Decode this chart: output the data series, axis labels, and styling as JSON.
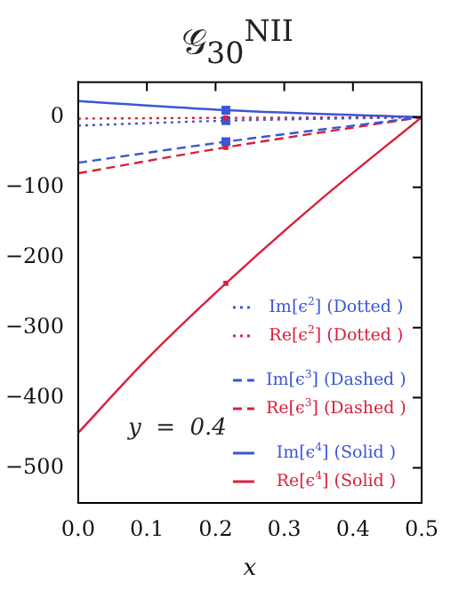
{
  "chart_data": {
    "type": "line",
    "title": "𝒢$_{30}$$^{NII}$",
    "xlabel": "x",
    "xlim": [
      0,
      0.5
    ],
    "ylim": [
      -550,
      50
    ],
    "xticks": [
      {
        "value": 0,
        "label": "0.0"
      },
      {
        "value": 0.1,
        "label": "0.1"
      },
      {
        "value": 0.2,
        "label": "0.2"
      },
      {
        "value": 0.3,
        "label": "0.3"
      },
      {
        "value": 0.4,
        "label": "0.4"
      },
      {
        "value": 0.5,
        "label": "0.5"
      }
    ],
    "yticks": [
      -500,
      -400,
      -300,
      -200,
      -100,
      0
    ],
    "grid": false,
    "legend": "bottom right",
    "annotations": [
      "y  =  0.4"
    ],
    "series": [
      {
        "name": "Im[ϵ$^{2}$] (Dotted )",
        "color": "#3a55d8",
        "line_style": "dotted",
        "x": [
          0,
          0.215,
          0.5
        ],
        "values": [
          -12,
          -5,
          0
        ]
      },
      {
        "name": "Re[ϵ$^{2}$] (Dotted )",
        "color": "#d8203c",
        "line_style": "dotted",
        "x": [
          0,
          0.215,
          0.5
        ],
        "values": [
          -2,
          -1,
          0
        ]
      },
      {
        "name": "Im[ϵ$^{3}$] (Dashed )",
        "color": "#3a55d8",
        "line_style": "dashed",
        "x": [
          0,
          0.215,
          0.5
        ],
        "values": [
          -65,
          -35,
          0
        ]
      },
      {
        "name": "Re[ϵ$^{3}$] (Dashed )",
        "color": "#d8203c",
        "line_style": "dashed",
        "x": [
          0,
          0.215,
          0.5
        ],
        "values": [
          -80,
          -43,
          0
        ]
      },
      {
        "name": "Im[ϵ$^{4}$] (Solid )",
        "color": "#3a55d8",
        "line_style": "solid",
        "x": [
          0,
          0.215,
          0.5
        ],
        "values": [
          23,
          10,
          0
        ]
      },
      {
        "name": "Re[ϵ$^{4}$] (Solid )",
        "color": "#d8203c",
        "line_style": "solid",
        "x": [
          0,
          0.1,
          0.215,
          0.35,
          0.5
        ],
        "values": [
          -450,
          -345,
          -237,
          -120,
          0
        ]
      },
      {
        "type": "scatter",
        "marker": "square",
        "color": "#3a55d8",
        "x": [
          0.215,
          0.215,
          0.215
        ],
        "values": [
          10,
          -5,
          -35
        ]
      },
      {
        "type": "scatter",
        "marker": "square",
        "color": "#d8203c",
        "x": [
          0.215,
          0.215,
          0.215
        ],
        "values": [
          -1,
          -43,
          -237
        ]
      }
    ]
  }
}
